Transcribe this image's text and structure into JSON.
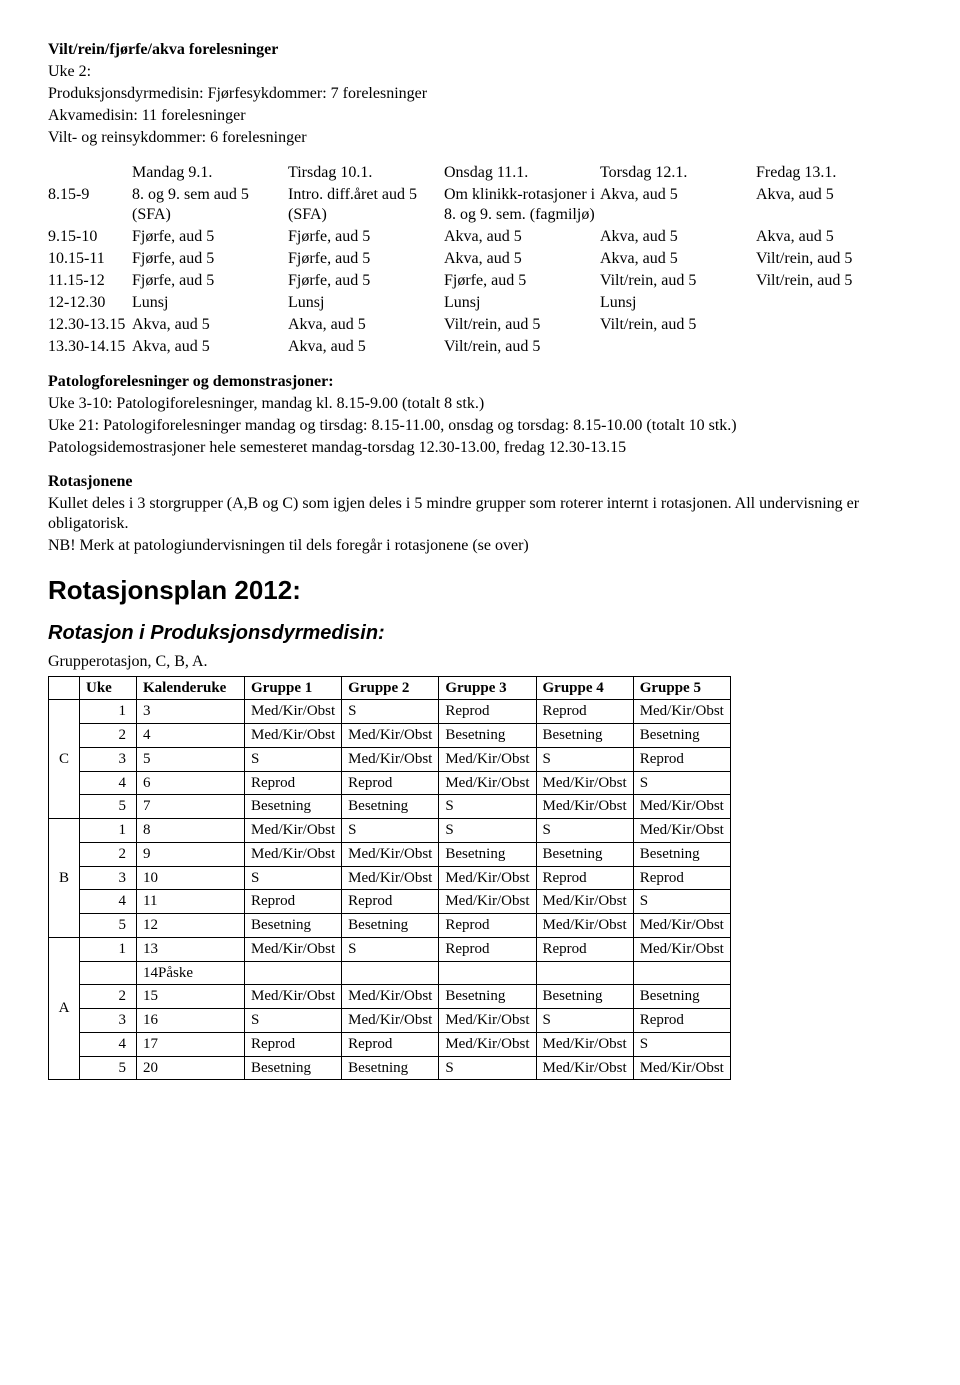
{
  "header": {
    "title": "Vilt/rein/fjørfe/akva forelesninger",
    "lines": [
      "Uke 2:",
      "Produksjonsdyrmedisin: Fjørfesykdommer: 7 forelesninger",
      "Akvamedisin: 11 forelesninger",
      "Vilt- og reinsykdommer: 6 forelesninger"
    ]
  },
  "schedule": {
    "rows": [
      [
        "",
        "Mandag 9.1.",
        "Tirsdag 10.1.",
        "Onsdag 11.1.",
        "Torsdag 12.1.",
        "Fredag 13.1."
      ],
      [
        "8.15-9",
        "8. og 9. sem aud 5 (SFA)",
        "Intro. diff.året aud 5 (SFA)",
        "Om klinikk-rotasjoner i 8. og 9. sem. (fagmiljø)",
        "Akva, aud 5",
        "Akva, aud 5"
      ],
      [
        "9.15-10",
        "Fjørfe, aud 5",
        "Fjørfe, aud 5",
        "Akva, aud 5",
        "Akva, aud 5",
        "Akva, aud 5"
      ],
      [
        "10.15-11",
        "Fjørfe, aud 5",
        "Fjørfe, aud 5",
        "Akva, aud 5",
        "Akva, aud 5",
        "Vilt/rein, aud 5"
      ],
      [
        "11.15-12",
        "Fjørfe, aud 5",
        "Fjørfe, aud 5",
        "Fjørfe, aud 5",
        "Vilt/rein, aud 5",
        "Vilt/rein, aud 5"
      ],
      [
        "12-12.30",
        "Lunsj",
        "Lunsj",
        "Lunsj",
        "Lunsj",
        ""
      ],
      [
        "12.30-13.15",
        "Akva, aud 5",
        "Akva, aud 5",
        "Vilt/rein, aud 5",
        "Vilt/rein, aud 5",
        ""
      ],
      [
        "13.30-14.15",
        "Akva, aud 5",
        "Akva, aud 5",
        "Vilt/rein, aud 5",
        "",
        ""
      ]
    ]
  },
  "patolog": {
    "title": "Patologforelesninger og demonstrasjoner:",
    "lines": [
      "Uke 3-10: Patologiforelesninger, mandag kl. 8.15-9.00 (totalt 8 stk.)",
      "Uke 21: Patologiforelesninger mandag og tirsdag: 8.15-11.00, onsdag og torsdag: 8.15-10.00 (totalt 10 stk.)",
      "Patologsidemostrasjoner hele semesteret mandag-torsdag 12.30-13.00, fredag 12.30-13.15"
    ]
  },
  "rotasjonene": {
    "title": "Rotasjonene",
    "lines": [
      "Kullet deles i 3 storgrupper (A,B og C) som igjen deles i 5 mindre grupper som roterer internt i rotasjonen. All undervisning er obligatorisk.",
      "NB! Merk at patologiundervisningen til dels foregår i rotasjonene (se over)"
    ]
  },
  "rotplan": {
    "title": "Rotasjonsplan 2012:",
    "subtitle": "Rotasjon i Produksjonsdyrmedisin:",
    "subline": "Grupperotasjon, C, B, A.",
    "columns": [
      "",
      "Uke",
      "Kalenderuke",
      "Gruppe 1",
      "Gruppe 2",
      "Gruppe 3",
      "Gruppe 4",
      "Gruppe 5"
    ],
    "blocks": [
      {
        "letter": "C",
        "rows": [
          [
            "1",
            "3",
            "Med/Kir/Obst",
            "S",
            "Reprod",
            "Reprod",
            "Med/Kir/Obst"
          ],
          [
            "2",
            "4",
            "Med/Kir/Obst",
            "Med/Kir/Obst",
            "Besetning",
            "Besetning",
            "Besetning"
          ],
          [
            "3",
            "5",
            "S",
            "Med/Kir/Obst",
            "Med/Kir/Obst",
            "S",
            "Reprod"
          ],
          [
            "4",
            "6",
            "Reprod",
            "Reprod",
            "Med/Kir/Obst",
            "Med/Kir/Obst",
            "S"
          ],
          [
            "5",
            "7",
            "Besetning",
            "Besetning",
            "S",
            "Med/Kir/Obst",
            "Med/Kir/Obst"
          ]
        ]
      },
      {
        "letter": "B",
        "rows": [
          [
            "1",
            "8",
            "Med/Kir/Obst",
            "S",
            "S",
            "S",
            "Med/Kir/Obst"
          ],
          [
            "2",
            "9",
            "Med/Kir/Obst",
            "Med/Kir/Obst",
            "Besetning",
            "Besetning",
            "Besetning"
          ],
          [
            "3",
            "10",
            "S",
            "Med/Kir/Obst",
            "Med/Kir/Obst",
            "Reprod",
            "Reprod"
          ],
          [
            "4",
            "11",
            "Reprod",
            "Reprod",
            "Med/Kir/Obst",
            "Med/Kir/Obst",
            "S"
          ],
          [
            "5",
            "12",
            "Besetning",
            "Besetning",
            "Reprod",
            "Med/Kir/Obst",
            "Med/Kir/Obst"
          ]
        ]
      },
      {
        "letter": "A",
        "rows": [
          [
            "1",
            "13",
            "Med/Kir/Obst",
            "S",
            "Reprod",
            "Reprod",
            "Med/Kir/Obst"
          ],
          [
            "",
            "14Påske",
            "",
            "",
            "",
            "",
            ""
          ],
          [
            "2",
            "15",
            "Med/Kir/Obst",
            "Med/Kir/Obst",
            "Besetning",
            "Besetning",
            "Besetning"
          ],
          [
            "3",
            "16",
            "S",
            "Med/Kir/Obst",
            "Med/Kir/Obst",
            "S",
            "Reprod"
          ],
          [
            "4",
            "17",
            "Reprod",
            "Reprod",
            "Med/Kir/Obst",
            "Med/Kir/Obst",
            "S"
          ],
          [
            "5",
            "20",
            "Besetning",
            "Besetning",
            "S",
            "Med/Kir/Obst",
            "Med/Kir/Obst"
          ]
        ]
      }
    ]
  }
}
